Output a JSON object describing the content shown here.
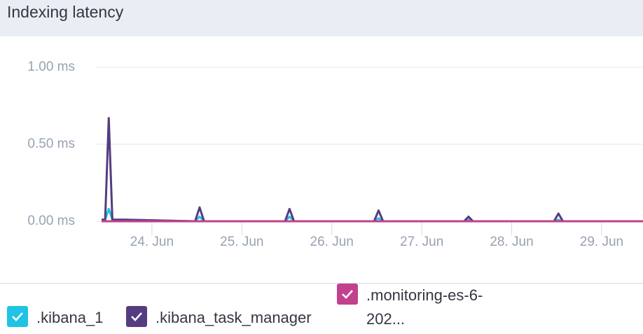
{
  "chart_data": {
    "type": "line",
    "title": "Indexing latency",
    "x": [
      23.44,
      23.48,
      23.52,
      23.56,
      23.7,
      24.48,
      24.53,
      24.58,
      25.48,
      25.53,
      25.58,
      26.47,
      26.52,
      26.57,
      27.47,
      27.52,
      27.57,
      28.47,
      28.52,
      28.57,
      29.46
    ],
    "series": [
      {
        "name": ".kibana_1",
        "color": "#1fc3e3",
        "values": [
          0.01,
          0.01,
          0.08,
          0.01,
          0.01,
          0,
          0.03,
          0,
          0,
          0.03,
          0,
          0,
          0.02,
          0,
          0,
          0.01,
          0,
          0,
          0.01,
          0,
          0
        ]
      },
      {
        "name": ".kibana_task_manager",
        "color": "#553c80",
        "values": [
          0.01,
          0.01,
          0.67,
          0.01,
          0.01,
          0,
          0.09,
          0,
          0,
          0.08,
          0,
          0,
          0.07,
          0,
          0,
          0.03,
          0,
          0,
          0.05,
          0,
          0
        ]
      },
      {
        "name": ".monitoring-es-6-202...",
        "color": "#c2418d",
        "values": [
          0,
          0,
          0,
          0,
          0,
          0,
          0,
          0,
          0,
          0,
          0,
          0,
          0,
          0,
          0,
          0,
          0,
          0,
          0,
          0,
          0
        ]
      }
    ],
    "xlim": [
      23.44,
      29.46
    ],
    "xticks": [
      {
        "value": 24,
        "label": "24. Jun"
      },
      {
        "value": 25,
        "label": "25. Jun"
      },
      {
        "value": 26,
        "label": "26. Jun"
      },
      {
        "value": 27,
        "label": "27. Jun"
      },
      {
        "value": 28,
        "label": "28. Jun"
      },
      {
        "value": 29,
        "label": "29. Jun"
      }
    ],
    "ylim": [
      0,
      1
    ],
    "yticks": [
      {
        "value": 0,
        "label": "0.00 ms"
      },
      {
        "value": 0.5,
        "label": "0.50 ms"
      },
      {
        "value": 1,
        "label": "1.00 ms"
      }
    ],
    "grid": true,
    "legend": "bottom"
  }
}
